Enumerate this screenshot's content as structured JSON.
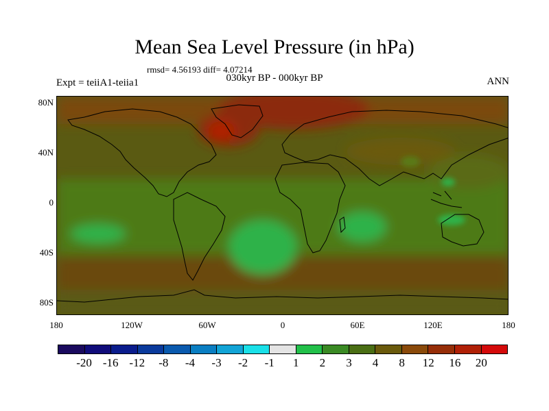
{
  "title": "Mean Sea Level Pressure (in hPa)",
  "stats": "rmsd= 4.56193 diff= 4.07214",
  "period": "030kyr BP - 000kyr BP",
  "experiment": "Expt = teiiA1-teiia1",
  "season": "ANN",
  "map": {
    "y_ticks": [
      "80N",
      "40N",
      "0",
      "40S",
      "80S"
    ],
    "x_ticks": [
      "180",
      "120W",
      "60W",
      "0",
      "60E",
      "120E",
      "180"
    ],
    "colors": {
      "background_field": "#5a5a12",
      "high_positive": "#d1200a",
      "strong_positive": "#8c2a08",
      "moderate_positive": "#7a4a0a",
      "weak_positive": "#4e7a18",
      "low_positive": "#2eb24a",
      "coastline": "#000000"
    }
  },
  "colorbar": {
    "labels": [
      "-20",
      "-16",
      "-12",
      "-8",
      "-4",
      "-3",
      "-2",
      "-1",
      "1",
      "2",
      "3",
      "4",
      "8",
      "12",
      "16",
      "20"
    ],
    "colors": [
      "#1a0a5e",
      "#100c7a",
      "#0a1c8c",
      "#0a3a9c",
      "#0a5aae",
      "#0a7ec2",
      "#12a4d6",
      "#1ae0e8",
      "#e4e4e4",
      "#22c04a",
      "#3a8a24",
      "#4a6e14",
      "#6a5a0c",
      "#8a4a0a",
      "#962e08",
      "#b02006",
      "#d40a0a"
    ]
  }
}
